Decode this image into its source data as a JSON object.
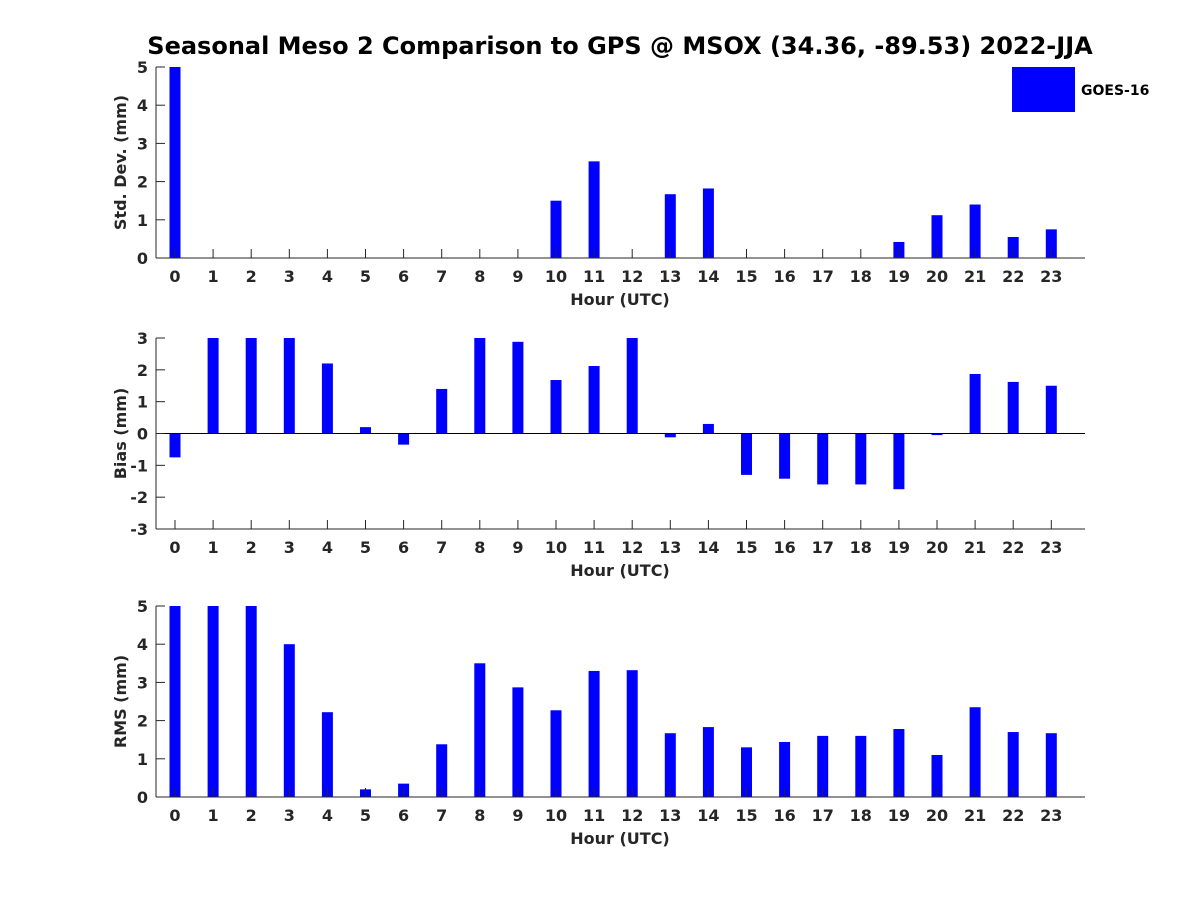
{
  "figure": {
    "title": "Seasonal Meso 2 Comparison to GPS @ MSOX (34.36, -89.53) 2022-JJA",
    "legend": {
      "label": "GOES-16",
      "color": "#0000ff",
      "placement": "top-right"
    }
  },
  "chart_data": [
    {
      "type": "bar",
      "xlabel": "Hour (UTC)",
      "ylabel": "Std. Dev. (mm)",
      "ylim": [
        0,
        5
      ],
      "yticks": [
        0,
        1,
        2,
        3,
        4,
        5
      ],
      "categories": [
        0,
        1,
        2,
        3,
        4,
        5,
        6,
        7,
        8,
        9,
        10,
        11,
        12,
        13,
        14,
        15,
        16,
        17,
        18,
        19,
        20,
        21,
        22,
        23
      ],
      "series": [
        {
          "name": "GOES-16",
          "color": "#0000ff",
          "values": [
            5,
            0,
            0,
            0,
            0,
            0,
            0,
            0,
            0,
            0,
            1.5,
            2.53,
            0,
            1.67,
            1.82,
            0,
            0,
            0,
            0,
            0.42,
            1.12,
            1.4,
            0.55,
            0.75
          ]
        }
      ]
    },
    {
      "type": "bar",
      "xlabel": "Hour (UTC)",
      "ylabel": "Bias (mm)",
      "ylim": [
        -3,
        3
      ],
      "yticks": [
        -3,
        -2,
        -1,
        0,
        1,
        2,
        3
      ],
      "categories": [
        0,
        1,
        2,
        3,
        4,
        5,
        6,
        7,
        8,
        9,
        10,
        11,
        12,
        13,
        14,
        15,
        16,
        17,
        18,
        19,
        20,
        21,
        22,
        23
      ],
      "series": [
        {
          "name": "GOES-16",
          "color": "#0000ff",
          "values": [
            -0.75,
            3,
            3,
            3,
            2.2,
            0.2,
            -0.35,
            1.4,
            3,
            2.88,
            1.68,
            2.12,
            3,
            -0.12,
            0.3,
            -1.3,
            -1.42,
            -1.6,
            -1.6,
            -1.75,
            -0.05,
            1.87,
            1.62,
            1.5
          ]
        }
      ]
    },
    {
      "type": "bar",
      "xlabel": "Hour (UTC)",
      "ylabel": "RMS (mm)",
      "ylim": [
        0,
        5
      ],
      "yticks": [
        0,
        1,
        2,
        3,
        4,
        5
      ],
      "categories": [
        0,
        1,
        2,
        3,
        4,
        5,
        6,
        7,
        8,
        9,
        10,
        11,
        12,
        13,
        14,
        15,
        16,
        17,
        18,
        19,
        20,
        21,
        22,
        23
      ],
      "series": [
        {
          "name": "GOES-16",
          "color": "#0000ff",
          "values": [
            5,
            5,
            5,
            4,
            2.22,
            0.2,
            0.35,
            1.38,
            3.5,
            2.87,
            2.27,
            3.3,
            3.32,
            1.67,
            1.83,
            1.3,
            1.44,
            1.6,
            1.6,
            1.78,
            1.1,
            2.35,
            1.7,
            1.67
          ]
        }
      ]
    }
  ]
}
